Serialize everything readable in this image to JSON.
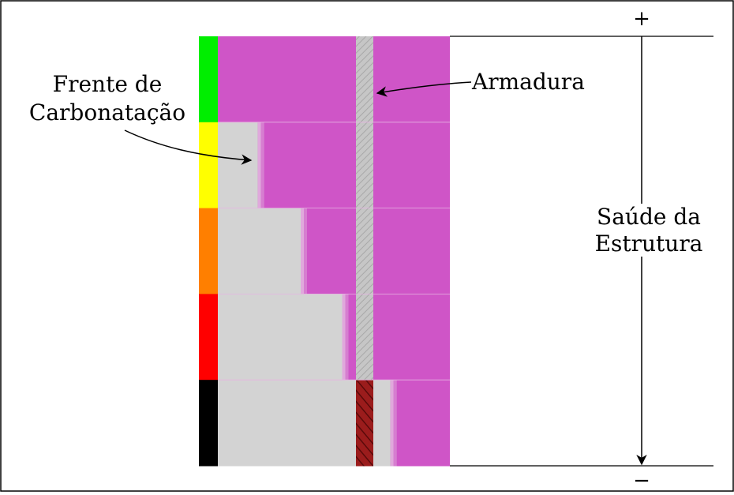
{
  "labels": {
    "carbonation_front_line1": "Frente de",
    "carbonation_front_line2": "Carbonatação",
    "rebar": "Armadura",
    "health_line1": "Saúde da",
    "health_line2": "Estrutura",
    "plus": "+",
    "minus": "−"
  },
  "stages": [
    {
      "status_color": "#00ee00",
      "carbonation_depth": 0.0,
      "corroded": false
    },
    {
      "status_color": "#ffff00",
      "carbonation_depth": 0.29,
      "corroded": false
    },
    {
      "status_color": "#ff7f00",
      "carbonation_depth": 0.6,
      "corroded": false
    },
    {
      "status_color": "#ff0000",
      "carbonation_depth": 0.9,
      "corroded": false
    },
    {
      "status_color": "#000000",
      "carbonation_depth": 1.25,
      "corroded": true
    }
  ],
  "colors": {
    "concrete_uncarbonated": "#cf55c7",
    "concrete_carbonated": "#d3d3d3",
    "rebar": "#c6c6c6",
    "rebar_corroded": "#9b1c1c"
  }
}
